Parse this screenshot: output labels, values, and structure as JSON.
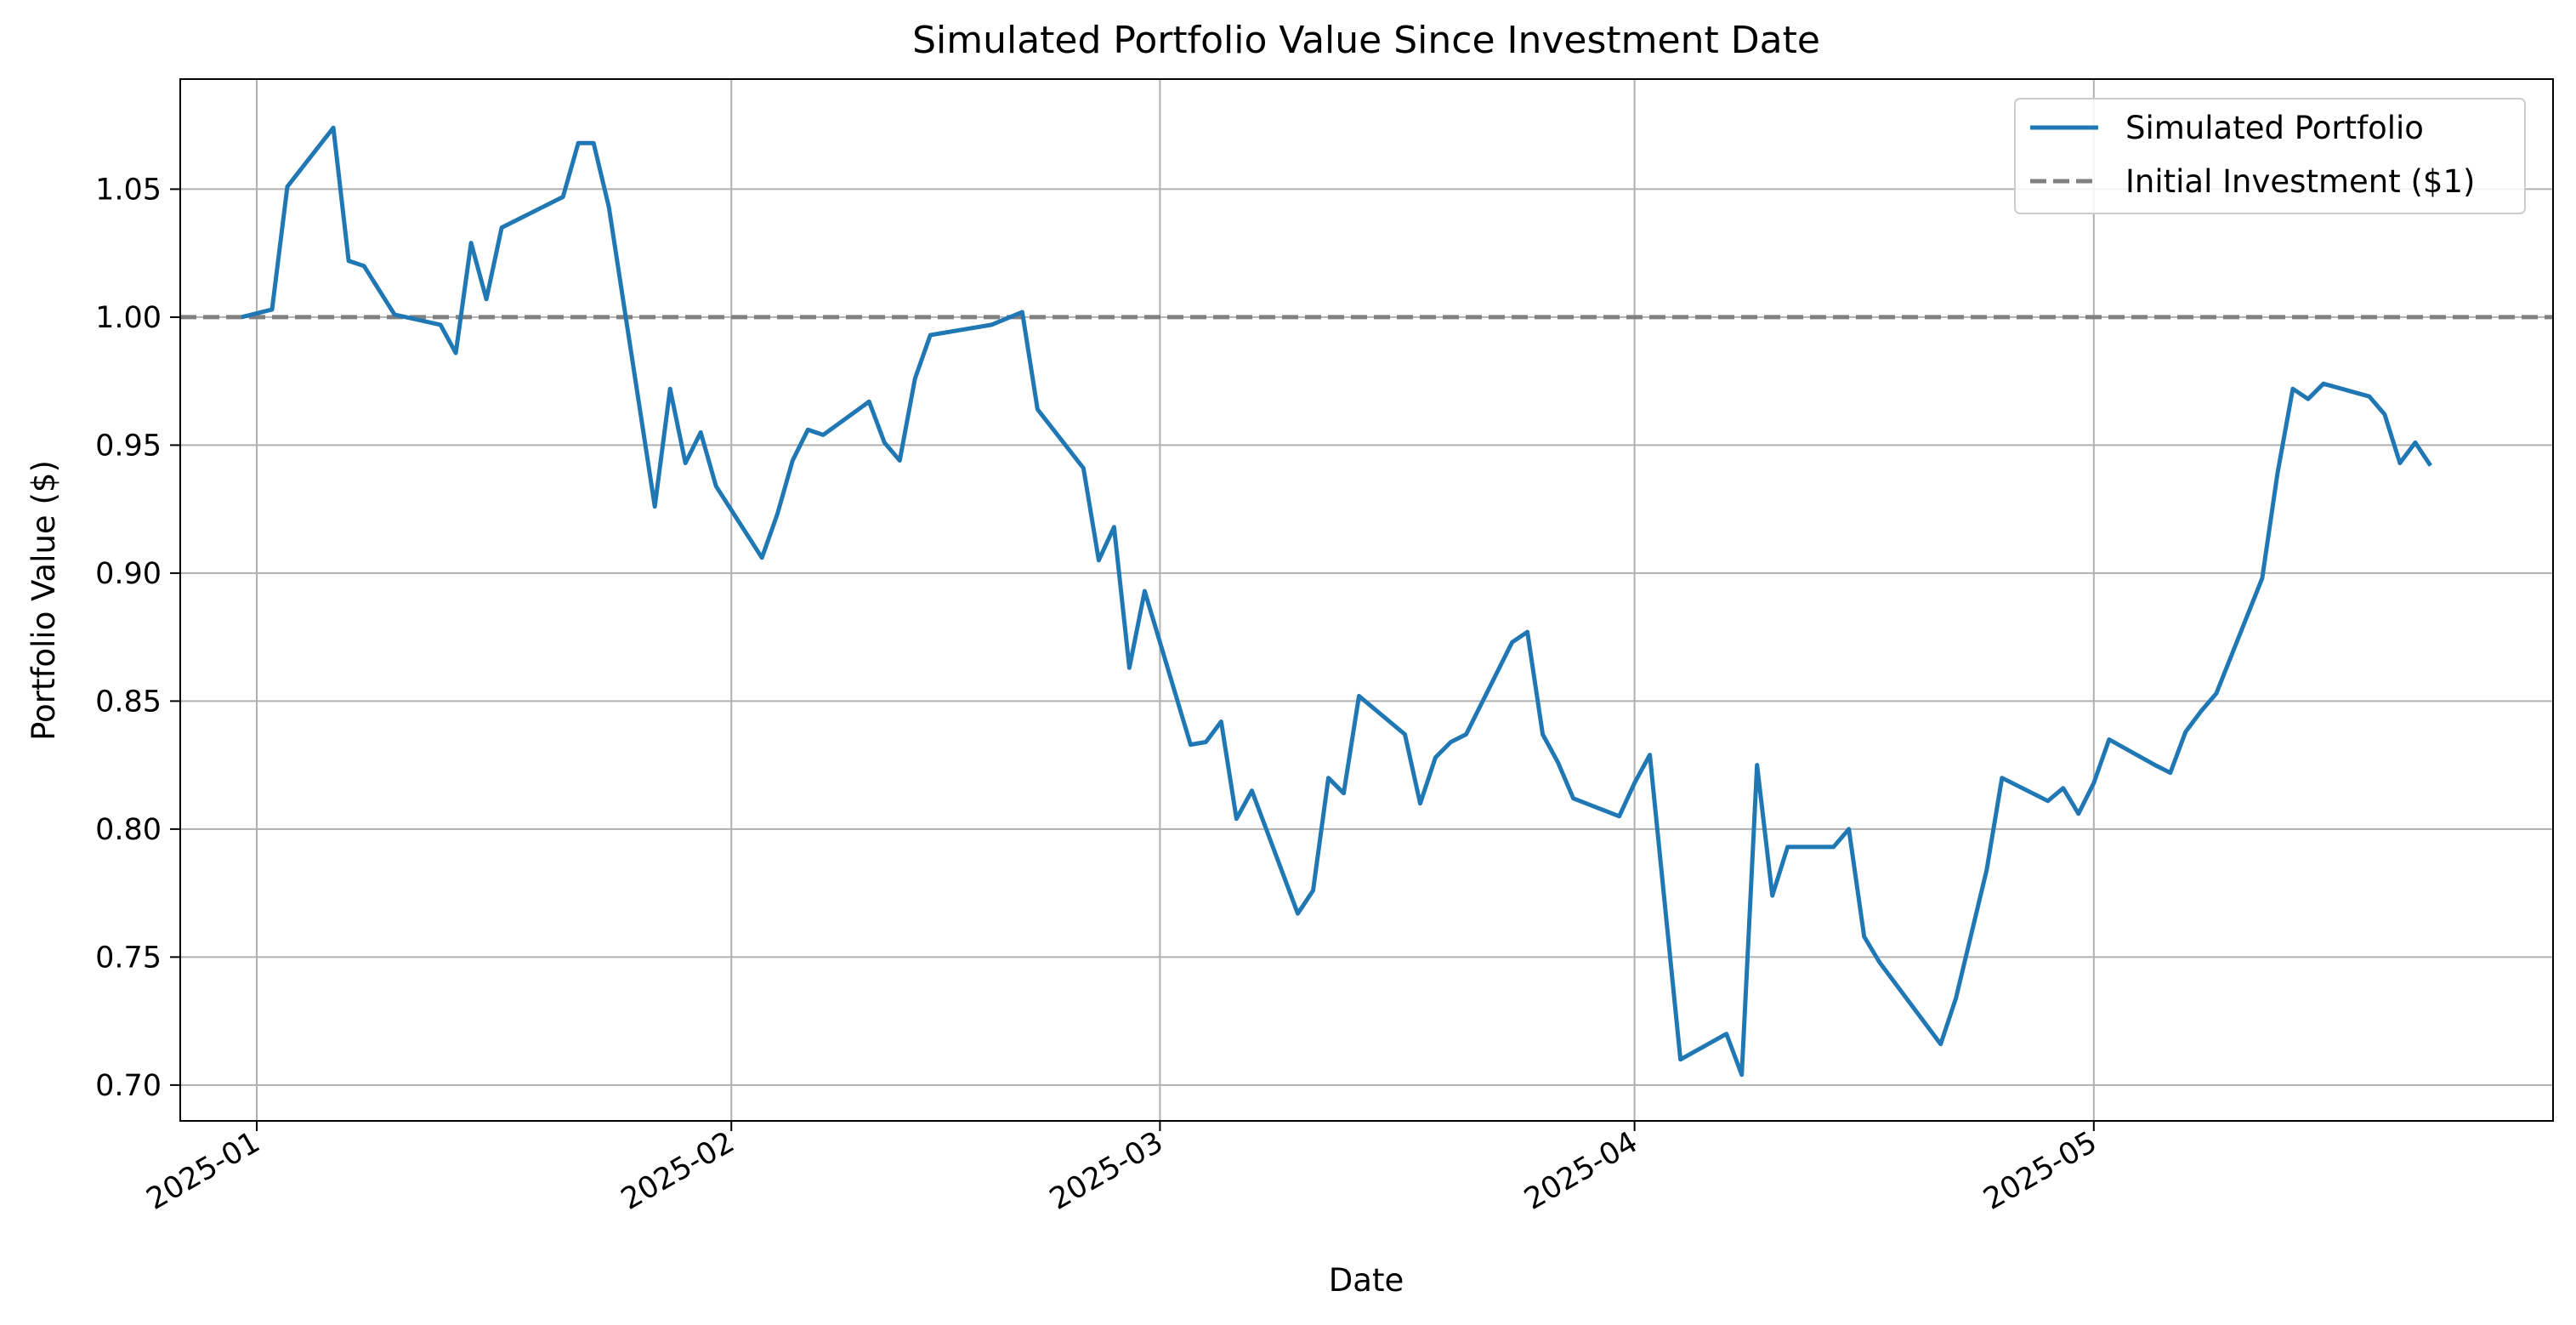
{
  "chart_data": {
    "type": "line",
    "title": "Simulated Portfolio Value Since Investment Date",
    "xlabel": "Date",
    "ylabel": "Portfolio Value ($)",
    "x_ticks": [
      "2025-01",
      "2025-02",
      "2025-03",
      "2025-04",
      "2025-05"
    ],
    "x_tick_dates": [
      "2025-01-01",
      "2025-02-01",
      "2025-03-01",
      "2025-04-01",
      "2025-05-01"
    ],
    "y_ticks": [
      "0.70",
      "0.75",
      "0.80",
      "0.85",
      "0.90",
      "0.95",
      "1.00",
      "1.05"
    ],
    "xlim": [
      "2024-12-27",
      "2025-05-31"
    ],
    "ylim": [
      0.686,
      1.093
    ],
    "grid": true,
    "legend_position": "top-right",
    "series": [
      {
        "name": "Simulated Portfolio",
        "color": "#1f77b4",
        "style": "solid",
        "points": [
          [
            "2024-12-31",
            1.0
          ],
          [
            "2025-01-02",
            1.003
          ],
          [
            "2025-01-03",
            1.051
          ],
          [
            "2025-01-06",
            1.074
          ],
          [
            "2025-01-07",
            1.022
          ],
          [
            "2025-01-08",
            1.02
          ],
          [
            "2025-01-10",
            1.001
          ],
          [
            "2025-01-13",
            0.997
          ],
          [
            "2025-01-14",
            0.986
          ],
          [
            "2025-01-15",
            1.029
          ],
          [
            "2025-01-16",
            1.007
          ],
          [
            "2025-01-17",
            1.035
          ],
          [
            "2025-01-21",
            1.047
          ],
          [
            "2025-01-22",
            1.068
          ],
          [
            "2025-01-23",
            1.068
          ],
          [
            "2025-01-24",
            1.043
          ],
          [
            "2025-01-27",
            0.926
          ],
          [
            "2025-01-28",
            0.972
          ],
          [
            "2025-01-29",
            0.943
          ],
          [
            "2025-01-30",
            0.955
          ],
          [
            "2025-01-31",
            0.934
          ],
          [
            "2025-02-03",
            0.906
          ],
          [
            "2025-02-04",
            0.923
          ],
          [
            "2025-02-05",
            0.944
          ],
          [
            "2025-02-06",
            0.956
          ],
          [
            "2025-02-07",
            0.954
          ],
          [
            "2025-02-10",
            0.967
          ],
          [
            "2025-02-11",
            0.951
          ],
          [
            "2025-02-12",
            0.944
          ],
          [
            "2025-02-13",
            0.976
          ],
          [
            "2025-02-14",
            0.993
          ],
          [
            "2025-02-18",
            0.997
          ],
          [
            "2025-02-20",
            1.002
          ],
          [
            "2025-02-21",
            0.964
          ],
          [
            "2025-02-24",
            0.941
          ],
          [
            "2025-02-25",
            0.905
          ],
          [
            "2025-02-26",
            0.918
          ],
          [
            "2025-02-27",
            0.863
          ],
          [
            "2025-02-28",
            0.893
          ],
          [
            "2025-03-03",
            0.833
          ],
          [
            "2025-03-04",
            0.834
          ],
          [
            "2025-03-05",
            0.842
          ],
          [
            "2025-03-06",
            0.804
          ],
          [
            "2025-03-07",
            0.815
          ],
          [
            "2025-03-10",
            0.767
          ],
          [
            "2025-03-11",
            0.776
          ],
          [
            "2025-03-12",
            0.82
          ],
          [
            "2025-03-13",
            0.814
          ],
          [
            "2025-03-14",
            0.852
          ],
          [
            "2025-03-17",
            0.837
          ],
          [
            "2025-03-18",
            0.81
          ],
          [
            "2025-03-19",
            0.828
          ],
          [
            "2025-03-20",
            0.834
          ],
          [
            "2025-03-21",
            0.837
          ],
          [
            "2025-03-24",
            0.873
          ],
          [
            "2025-03-25",
            0.877
          ],
          [
            "2025-03-26",
            0.837
          ],
          [
            "2025-03-27",
            0.826
          ],
          [
            "2025-03-28",
            0.812
          ],
          [
            "2025-03-31",
            0.805
          ],
          [
            "2025-04-01",
            0.818
          ],
          [
            "2025-04-02",
            0.829
          ],
          [
            "2025-04-04",
            0.71
          ],
          [
            "2025-04-07",
            0.72
          ],
          [
            "2025-04-08",
            0.704
          ],
          [
            "2025-04-09",
            0.825
          ],
          [
            "2025-04-10",
            0.774
          ],
          [
            "2025-04-11",
            0.793
          ],
          [
            "2025-04-14",
            0.793
          ],
          [
            "2025-04-15",
            0.8
          ],
          [
            "2025-04-16",
            0.758
          ],
          [
            "2025-04-17",
            0.748
          ],
          [
            "2025-04-21",
            0.716
          ],
          [
            "2025-04-22",
            0.734
          ],
          [
            "2025-04-24",
            0.784
          ],
          [
            "2025-04-25",
            0.82
          ],
          [
            "2025-04-28",
            0.811
          ],
          [
            "2025-04-29",
            0.816
          ],
          [
            "2025-04-30",
            0.806
          ],
          [
            "2025-05-01",
            0.818
          ],
          [
            "2025-05-02",
            0.835
          ],
          [
            "2025-05-05",
            0.825
          ],
          [
            "2025-05-06",
            0.822
          ],
          [
            "2025-05-07",
            0.838
          ],
          [
            "2025-05-08",
            0.846
          ],
          [
            "2025-05-09",
            0.853
          ],
          [
            "2025-05-12",
            0.898
          ],
          [
            "2025-05-13",
            0.939
          ],
          [
            "2025-05-14",
            0.972
          ],
          [
            "2025-05-15",
            0.968
          ],
          [
            "2025-05-16",
            0.974
          ],
          [
            "2025-05-19",
            0.969
          ],
          [
            "2025-05-20",
            0.962
          ],
          [
            "2025-05-21",
            0.943
          ],
          [
            "2025-05-22",
            0.951
          ],
          [
            "2025-05-23",
            0.942
          ]
        ]
      },
      {
        "name": "Initial Investment ($1)",
        "color": "#808080",
        "style": "dashed",
        "y": 1.0
      }
    ]
  }
}
